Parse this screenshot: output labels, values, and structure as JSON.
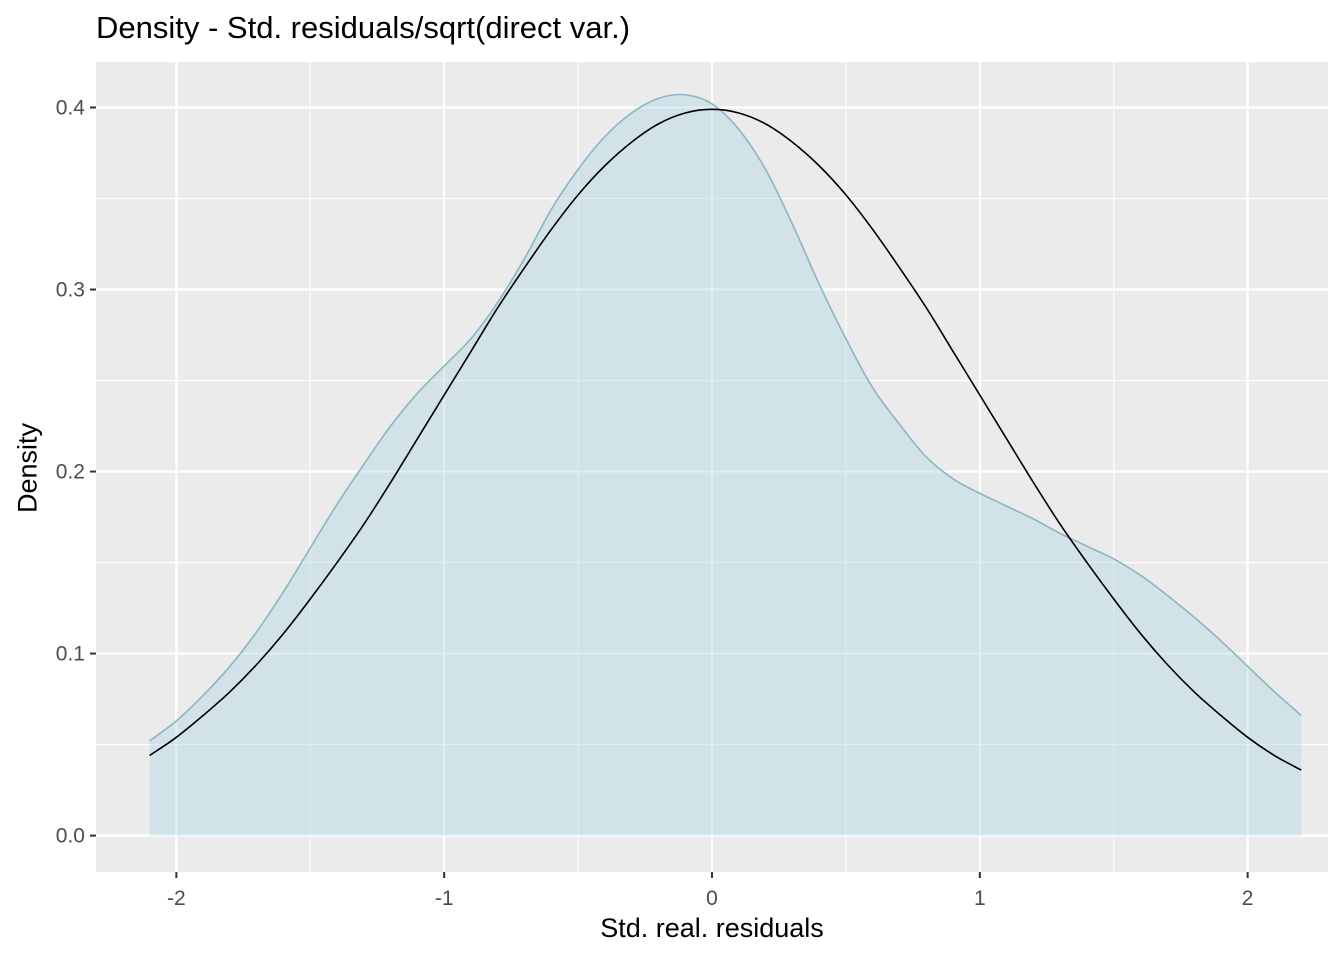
{
  "chart_data": {
    "type": "area",
    "title": "Density - Std. residuals/sqrt(direct var.)",
    "xlabel": "Std. real. residuals",
    "ylabel": "Density",
    "xlim": [
      -2.3,
      2.3
    ],
    "ylim": [
      -0.02,
      0.425
    ],
    "x_ticks": [
      -2,
      -1,
      0,
      1,
      2
    ],
    "x_tick_labels": [
      "-2",
      "-1",
      "0",
      "1",
      "2"
    ],
    "y_ticks": [
      0.0,
      0.1,
      0.2,
      0.3,
      0.4
    ],
    "y_tick_labels": [
      "0.0",
      "0.1",
      "0.2",
      "0.3",
      "0.4"
    ],
    "grid": true,
    "colors": {
      "panel_background": "#EBEBEB",
      "grid_line": "#FFFFFF",
      "density_fill": "#ADD8E6",
      "density_outline": "#8DB4C2",
      "normal_curve": "#000000",
      "tick_label": "#4D4D4D"
    },
    "series": [
      {
        "style": "filled-density",
        "x": [
          -2.1,
          -2.0,
          -1.9,
          -1.8,
          -1.7,
          -1.6,
          -1.5,
          -1.4,
          -1.3,
          -1.2,
          -1.1,
          -1.0,
          -0.9,
          -0.8,
          -0.7,
          -0.6,
          -0.5,
          -0.4,
          -0.3,
          -0.2,
          -0.1,
          0.0,
          0.1,
          0.2,
          0.3,
          0.4,
          0.5,
          0.6,
          0.7,
          0.8,
          0.9,
          1.0,
          1.1,
          1.2,
          1.3,
          1.4,
          1.5,
          1.6,
          1.7,
          1.8,
          1.9,
          2.0,
          2.1,
          2.2
        ],
        "y": [
          0.052,
          0.063,
          0.077,
          0.093,
          0.112,
          0.134,
          0.158,
          0.182,
          0.204,
          0.225,
          0.243,
          0.258,
          0.273,
          0.293,
          0.317,
          0.344,
          0.366,
          0.384,
          0.397,
          0.405,
          0.407,
          0.402,
          0.388,
          0.366,
          0.336,
          0.303,
          0.273,
          0.246,
          0.226,
          0.208,
          0.196,
          0.188,
          0.181,
          0.174,
          0.166,
          0.159,
          0.152,
          0.143,
          0.132,
          0.12,
          0.107,
          0.093,
          0.079,
          0.066
        ]
      },
      {
        "style": "normal-curve",
        "x": [
          -2.1,
          -2.0,
          -1.9,
          -1.8,
          -1.7,
          -1.6,
          -1.5,
          -1.4,
          -1.3,
          -1.2,
          -1.1,
          -1.0,
          -0.9,
          -0.8,
          -0.7,
          -0.6,
          -0.5,
          -0.4,
          -0.3,
          -0.2,
          -0.1,
          0.0,
          0.1,
          0.2,
          0.3,
          0.4,
          0.5,
          0.6,
          0.7,
          0.8,
          0.9,
          1.0,
          1.1,
          1.2,
          1.3,
          1.4,
          1.5,
          1.6,
          1.7,
          1.8,
          1.9,
          2.0,
          2.1,
          2.2
        ],
        "y": [
          0.044,
          0.054,
          0.066,
          0.079,
          0.094,
          0.111,
          0.13,
          0.15,
          0.171,
          0.194,
          0.218,
          0.242,
          0.266,
          0.29,
          0.312,
          0.333,
          0.352,
          0.368,
          0.381,
          0.391,
          0.397,
          0.399,
          0.397,
          0.391,
          0.381,
          0.368,
          0.352,
          0.333,
          0.312,
          0.29,
          0.266,
          0.242,
          0.218,
          0.194,
          0.171,
          0.15,
          0.13,
          0.111,
          0.094,
          0.079,
          0.066,
          0.054,
          0.044,
          0.036
        ]
      }
    ]
  }
}
